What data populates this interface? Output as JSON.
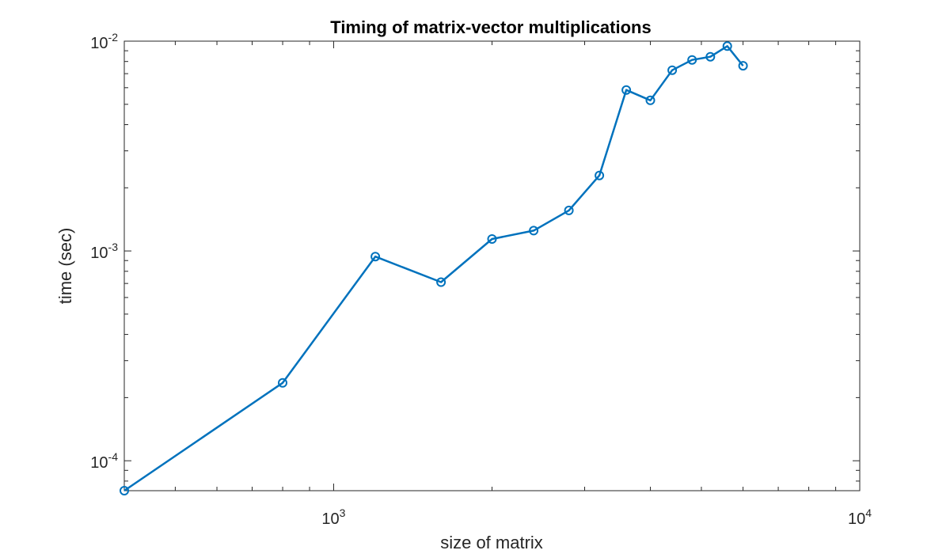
{
  "chart_data": {
    "type": "line",
    "title": "Timing of matrix-vector multiplications",
    "xlabel": "size of matrix",
    "ylabel": "time (sec)",
    "xscale": "log",
    "yscale": "log",
    "xlim": [
      400,
      10000
    ],
    "ylim": [
      7.2e-05,
      0.01
    ],
    "grid": false,
    "colors": {
      "series": "#0072bd",
      "axes": "#262626"
    },
    "x_ticks": [
      {
        "value": 1000,
        "base": "10",
        "exp": "3"
      },
      {
        "value": 10000,
        "base": "10",
        "exp": "4"
      }
    ],
    "y_ticks": [
      {
        "value": 0.0001,
        "base": "10",
        "exp": "-4"
      },
      {
        "value": 0.001,
        "base": "10",
        "exp": "-3"
      },
      {
        "value": 0.01,
        "base": "10",
        "exp": "-2"
      }
    ],
    "series": [
      {
        "marker": "circle",
        "x": [
          400,
          800,
          1200,
          1600,
          2000,
          2400,
          2800,
          3200,
          3600,
          4000,
          4400,
          4800,
          5200,
          5600,
          6000
        ],
        "y": [
          7.2e-05,
          0.000235,
          0.00094,
          0.00071,
          0.00114,
          0.00125,
          0.00156,
          0.00229,
          0.00585,
          0.00522,
          0.00727,
          0.00814,
          0.00843,
          0.00947,
          0.00763
        ]
      }
    ]
  }
}
